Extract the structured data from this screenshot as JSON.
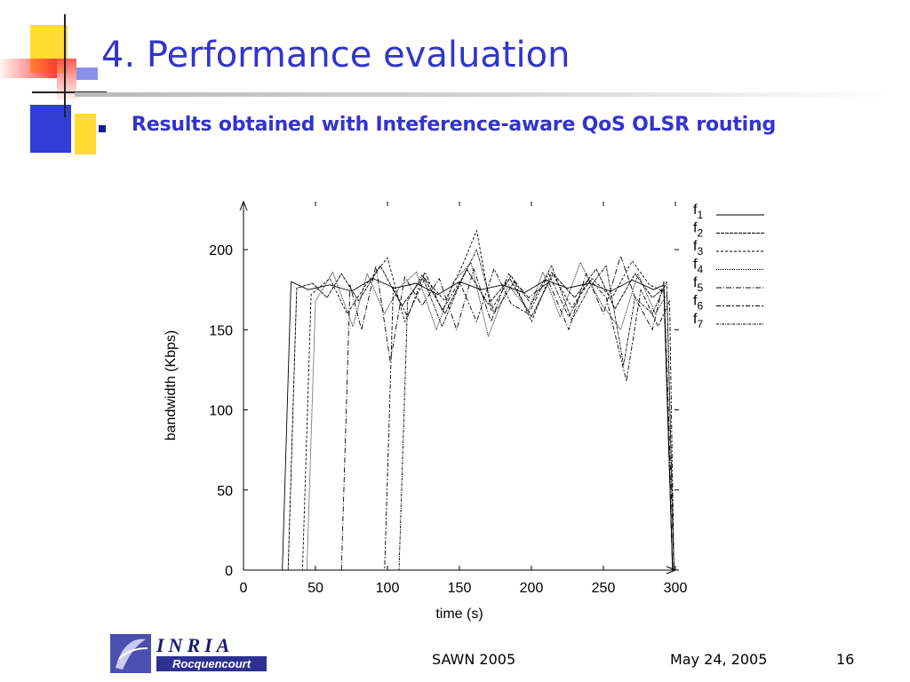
{
  "slide": {
    "title": "4. Performance evaluation",
    "bullet": "Results obtained with Inteference-aware QoS OLSR routing"
  },
  "footer": {
    "event": "SAWN 2005",
    "date": "May 24, 2005",
    "page": "16"
  },
  "logo": {
    "name": "INRIA",
    "subtitle": "Rocquencourt"
  },
  "colors": {
    "title": "#3333cc",
    "bullet_mark": "#1a1a99",
    "deco_yellow": "#ffdd33",
    "deco_blue": "#2f3fd6",
    "deco_red": "#ff3333",
    "plot_ink": "#000000"
  },
  "chart_data": {
    "type": "line",
    "xlabel": "time (s)",
    "ylabel": "bandwidth (Kbps)",
    "xlim": [
      0,
      300
    ],
    "ylim": [
      0,
      230
    ],
    "xticks": [
      0,
      50,
      100,
      150,
      200,
      250,
      300
    ],
    "yticks": [
      0,
      50,
      100,
      150,
      200
    ],
    "grid": false,
    "legend_position": "top-right",
    "series": [
      {
        "name": "f1",
        "values": [
          [
            0,
            0
          ],
          [
            27,
            0
          ],
          [
            33,
            180
          ],
          [
            45,
            175
          ],
          [
            60,
            178
          ],
          [
            75,
            174
          ],
          [
            90,
            182
          ],
          [
            105,
            176
          ],
          [
            120,
            179
          ],
          [
            135,
            172
          ],
          [
            150,
            180
          ],
          [
            165,
            175
          ],
          [
            180,
            178
          ],
          [
            195,
            173
          ],
          [
            210,
            181
          ],
          [
            225,
            176
          ],
          [
            240,
            179
          ],
          [
            255,
            174
          ],
          [
            270,
            181
          ],
          [
            285,
            175
          ],
          [
            292,
            178
          ],
          [
            298,
            0
          ],
          [
            300,
            0
          ]
        ]
      },
      {
        "name": "f2",
        "values": [
          [
            0,
            0
          ],
          [
            31,
            0
          ],
          [
            37,
            176
          ],
          [
            48,
            179
          ],
          [
            58,
            170
          ],
          [
            68,
            185
          ],
          [
            80,
            168
          ],
          [
            95,
            190
          ],
          [
            110,
            165
          ],
          [
            125,
            183
          ],
          [
            140,
            160
          ],
          [
            155,
            188
          ],
          [
            170,
            166
          ],
          [
            185,
            182
          ],
          [
            200,
            158
          ],
          [
            215,
            185
          ],
          [
            230,
            170
          ],
          [
            245,
            188
          ],
          [
            258,
            163
          ],
          [
            272,
            185
          ],
          [
            284,
            170
          ],
          [
            292,
            176
          ],
          [
            298,
            0
          ],
          [
            300,
            0
          ]
        ]
      },
      {
        "name": "f3",
        "values": [
          [
            0,
            0
          ],
          [
            41,
            0
          ],
          [
            47,
            172
          ],
          [
            60,
            182
          ],
          [
            72,
            160
          ],
          [
            85,
            178
          ],
          [
            100,
            195
          ],
          [
            112,
            155
          ],
          [
            126,
            182
          ],
          [
            140,
            168
          ],
          [
            152,
            190
          ],
          [
            162,
            212
          ],
          [
            172,
            162
          ],
          [
            186,
            184
          ],
          [
            200,
            155
          ],
          [
            214,
            186
          ],
          [
            228,
            164
          ],
          [
            242,
            182
          ],
          [
            256,
            170
          ],
          [
            270,
            193
          ],
          [
            282,
            178
          ],
          [
            292,
            174
          ],
          [
            298,
            0
          ],
          [
            300,
            0
          ]
        ]
      },
      {
        "name": "f4",
        "values": [
          [
            0,
            0
          ],
          [
            44,
            0
          ],
          [
            50,
            168
          ],
          [
            62,
            186
          ],
          [
            76,
            152
          ],
          [
            86,
            185
          ],
          [
            98,
            160
          ],
          [
            108,
            176
          ],
          [
            120,
            186
          ],
          [
            134,
            150
          ],
          [
            146,
            180
          ],
          [
            158,
            192
          ],
          [
            170,
            146
          ],
          [
            184,
            178
          ],
          [
            198,
            162
          ],
          [
            208,
            186
          ],
          [
            220,
            158
          ],
          [
            234,
            192
          ],
          [
            248,
            167
          ],
          [
            262,
            150
          ],
          [
            274,
            185
          ],
          [
            286,
            160
          ],
          [
            294,
            172
          ],
          [
            299,
            0
          ],
          [
            300,
            0
          ]
        ]
      },
      {
        "name": "f5",
        "values": [
          [
            0,
            0
          ],
          [
            68,
            0
          ],
          [
            74,
            178
          ],
          [
            82,
            150
          ],
          [
            92,
            190
          ],
          [
            102,
            130
          ],
          [
            112,
            183
          ],
          [
            124,
            165
          ],
          [
            136,
            182
          ],
          [
            148,
            150
          ],
          [
            160,
            188
          ],
          [
            172,
            155
          ],
          [
            184,
            185
          ],
          [
            198,
            170
          ],
          [
            212,
            180
          ],
          [
            226,
            150
          ],
          [
            238,
            185
          ],
          [
            250,
            160
          ],
          [
            262,
            196
          ],
          [
            272,
            170
          ],
          [
            284,
            150
          ],
          [
            292,
            180
          ],
          [
            299,
            0
          ],
          [
            300,
            0
          ]
        ]
      },
      {
        "name": "f6",
        "values": [
          [
            0,
            0
          ],
          [
            98,
            0
          ],
          [
            104,
            176
          ],
          [
            114,
            158
          ],
          [
            126,
            186
          ],
          [
            138,
            162
          ],
          [
            150,
            180
          ],
          [
            162,
            155
          ],
          [
            174,
            188
          ],
          [
            186,
            166
          ],
          [
            198,
            160
          ],
          [
            212,
            185
          ],
          [
            226,
            158
          ],
          [
            240,
            182
          ],
          [
            252,
            170
          ],
          [
            266,
            118
          ],
          [
            276,
            175
          ],
          [
            288,
            152
          ],
          [
            296,
            168
          ],
          [
            299,
            0
          ],
          [
            300,
            0
          ]
        ]
      },
      {
        "name": "f7",
        "values": [
          [
            0,
            0
          ],
          [
            108,
            0
          ],
          [
            114,
            168
          ],
          [
            124,
            184
          ],
          [
            138,
            152
          ],
          [
            150,
            178
          ],
          [
            162,
            200
          ],
          [
            174,
            160
          ],
          [
            188,
            180
          ],
          [
            200,
            166
          ],
          [
            214,
            190
          ],
          [
            228,
            156
          ],
          [
            240,
            176
          ],
          [
            252,
            190
          ],
          [
            264,
            128
          ],
          [
            272,
            170
          ],
          [
            284,
            160
          ],
          [
            294,
            180
          ],
          [
            299,
            0
          ],
          [
            300,
            0
          ]
        ]
      }
    ]
  }
}
